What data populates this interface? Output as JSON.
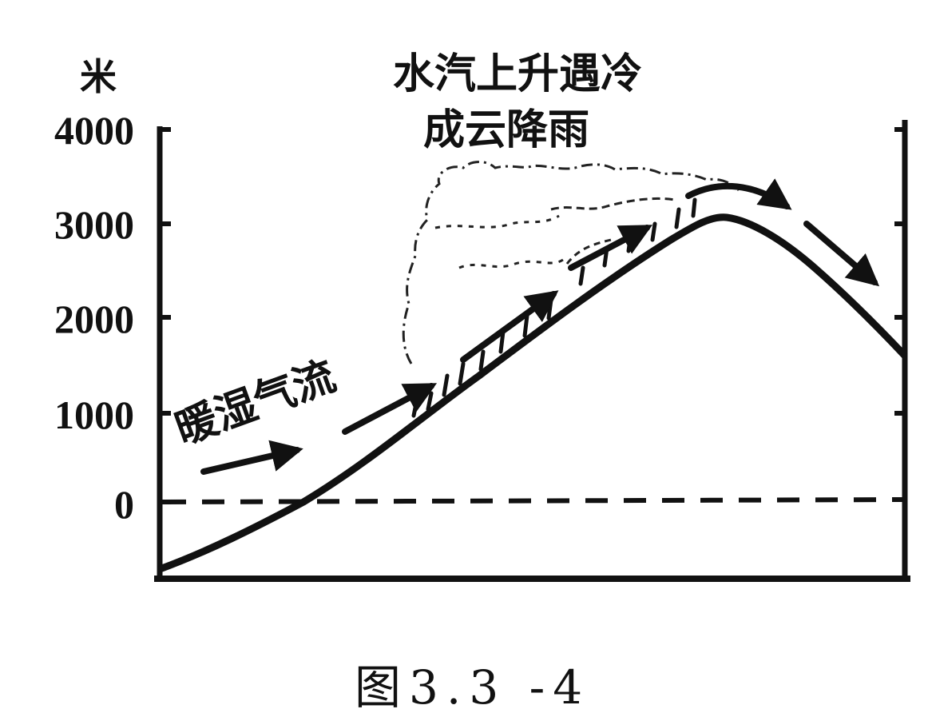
{
  "axis": {
    "unit": "米",
    "ticks": [
      "4000",
      "3000",
      "2000",
      "1000",
      "0"
    ]
  },
  "annotation": {
    "line1": "水汽上升遇冷",
    "line2": "成云降雨"
  },
  "flow_label": "暖湿气流",
  "caption": "图3.3 -4"
}
